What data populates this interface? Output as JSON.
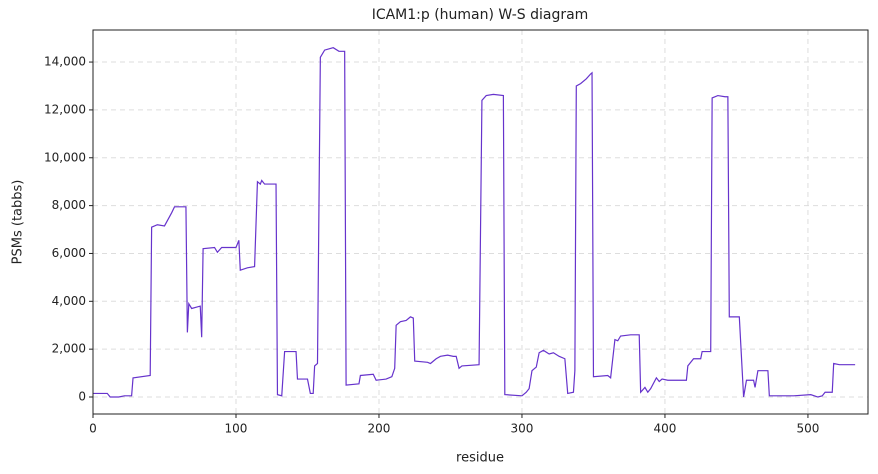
{
  "chart_data": {
    "type": "line",
    "title": "ICAM1:p (human) W-S diagram",
    "xlabel": "residue",
    "ylabel": "PSMs (tabbs)",
    "color": "#6633cc",
    "grid": true,
    "xlim": [
      0,
      542
    ],
    "ylim": [
      -710,
      15340
    ],
    "xticks": [
      0,
      100,
      200,
      300,
      400,
      500
    ],
    "yticks": [
      0,
      {
        "value": 2000,
        "label": "2,000"
      },
      {
        "value": 4000,
        "label": "4,000"
      },
      {
        "value": 6000,
        "label": "6,000"
      },
      {
        "value": 8000,
        "label": "8,000"
      },
      {
        "value": 10000,
        "label": "10,000"
      },
      {
        "value": 12000,
        "label": "12,000"
      },
      {
        "value": 14000,
        "label": "14,000"
      }
    ],
    "x": [
      0,
      10,
      12,
      18,
      22,
      27,
      28,
      40,
      41,
      45,
      50,
      55,
      57,
      65,
      66,
      67,
      69,
      75,
      76,
      77,
      85,
      87,
      90,
      100,
      102,
      103,
      108,
      113,
      115,
      117,
      118,
      120,
      128,
      129,
      132,
      134,
      142,
      143,
      150,
      152,
      154,
      155,
      157,
      159,
      162,
      168,
      172,
      176,
      177,
      186,
      187,
      196,
      198,
      205,
      209,
      211,
      212,
      215,
      219,
      222,
      224,
      225,
      234,
      236,
      240,
      243,
      248,
      252,
      254,
      256,
      258,
      270,
      272,
      275,
      280,
      287,
      288,
      300,
      303,
      305,
      307,
      310,
      312,
      315,
      319,
      322,
      326,
      330,
      332,
      336,
      337,
      338,
      341,
      345,
      348,
      349,
      350,
      360,
      362,
      365,
      367,
      369,
      376,
      382,
      383,
      386,
      388,
      390,
      394,
      396,
      398,
      402,
      415,
      416,
      420,
      425,
      426,
      432,
      433,
      437,
      442,
      444,
      445,
      452,
      455,
      457,
      462,
      463,
      465,
      472,
      473,
      490,
      502,
      507,
      510,
      512,
      517,
      518,
      522,
      533
    ],
    "values": [
      150,
      150,
      0,
      0,
      50,
      50,
      800,
      900,
      7100,
      7200,
      7150,
      7700,
      7950,
      7950,
      2700,
      3900,
      3700,
      3800,
      2500,
      6200,
      6250,
      6050,
      6250,
      6250,
      6550,
      5300,
      5400,
      5450,
      9000,
      8900,
      9050,
      8900,
      8900,
      100,
      50,
      1900,
      1900,
      750,
      750,
      150,
      150,
      1300,
      1400,
      14200,
      14500,
      14600,
      14450,
      14450,
      500,
      550,
      900,
      950,
      700,
      750,
      850,
      1200,
      3000,
      3150,
      3200,
      3350,
      3300,
      1500,
      1450,
      1400,
      1600,
      1700,
      1750,
      1700,
      1700,
      1200,
      1300,
      1350,
      12400,
      12600,
      12650,
      12600,
      100,
      50,
      200,
      350,
      1100,
      1250,
      1850,
      1950,
      1800,
      1850,
      1700,
      1600,
      150,
      200,
      1100,
      13000,
      13100,
      13300,
      13500,
      13550,
      850,
      900,
      800,
      2400,
      2350,
      2550,
      2600,
      2600,
      200,
      400,
      200,
      350,
      800,
      650,
      750,
      700,
      700,
      1300,
      1600,
      1600,
      1900,
      1900,
      12500,
      12600,
      12550,
      12550,
      3350,
      3350,
      0,
      700,
      700,
      400,
      1100,
      1100,
      50,
      50,
      100,
      0,
      50,
      200,
      200,
      1400,
      1350,
      1350
    ]
  }
}
